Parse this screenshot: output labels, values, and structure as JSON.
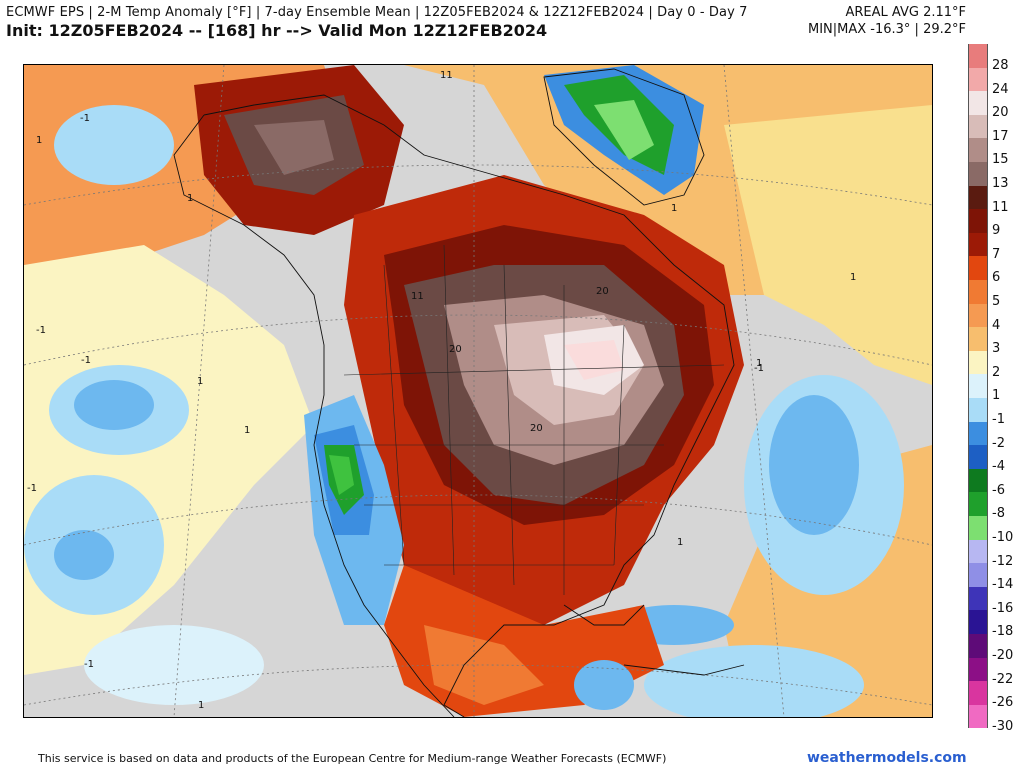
{
  "header": {
    "line1": "ECMWF EPS | 2-M Temp Anomaly [°F] | 7-day Ensemble Mean | 12Z05FEB2024 & 12Z12FEB2024 | Day 0 - Day 7",
    "line2": "Init: 12Z05FEB2024 -- [168] hr --> Valid Mon 12Z12FEB2024",
    "areal_avg": "AREAL AVG 2.11°F",
    "min_max": "MIN|MAX -16.3° | 29.2°F"
  },
  "legend": {
    "colors": [
      "#e87c7c",
      "#f2a9a9",
      "#fadcdc",
      "#f2e6e6",
      "#d8bcb8",
      "#b08d88",
      "#8a6a66",
      "#6b4a45",
      "#5a1b10",
      "#7e1406",
      "#9c1a06",
      "#bf2a0a",
      "#e2470f",
      "#f07a33",
      "#f59a52",
      "#f7be6e",
      "#f9e08e",
      "#fbf4c2",
      "#dcf2fb",
      "#a9dcf7",
      "#6db8ef",
      "#3c8ee0",
      "#1d5fc4",
      "#0e7a1f",
      "#1fa02c",
      "#3fc23f",
      "#7ddf71",
      "#b7b7f2",
      "#8f8fe6",
      "#6563d6",
      "#3e34b8",
      "#2a1494",
      "#5e0b78",
      "#8c0f86",
      "#b51f96",
      "#d9359f",
      "#f06ac2"
    ],
    "labels": [
      "28",
      "24",
      "20",
      "17",
      "15",
      "13",
      "11",
      "9",
      "7",
      "6",
      "5",
      "4",
      "3",
      "2",
      "1",
      "-1",
      "-2",
      "-4",
      "-6",
      "-8",
      "-10",
      "-12",
      "-14",
      "-16",
      "-18",
      "-20",
      "-22",
      "-26",
      "-30"
    ]
  },
  "map": {
    "contour_labels": [
      "20",
      "20",
      "20",
      "11",
      "11",
      "1",
      "1",
      "1",
      "1",
      "1",
      "1",
      "1",
      "1",
      "1",
      "-1",
      "-1",
      "-1",
      "-1",
      "-1",
      "-1"
    ]
  },
  "footer": {
    "attribution": "This service is based on data and products of the European Centre for Medium-range Weather Forecasts (ECMWF)",
    "site": "weathermodels.com"
  }
}
